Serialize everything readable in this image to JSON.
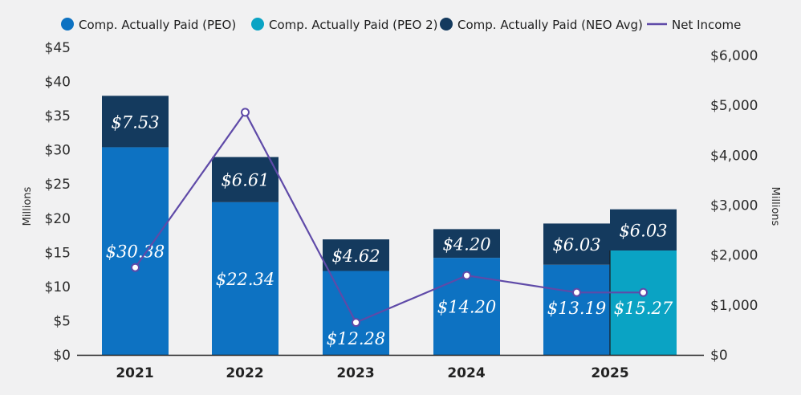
{
  "chart_data": {
    "type": "bar",
    "stacked": true,
    "categories": [
      "2021",
      "2022",
      "2023",
      "2024",
      "2025",
      "2025"
    ],
    "x_labels": [
      "2021",
      "2022",
      "2023",
      "2024",
      "2025"
    ],
    "series": [
      {
        "name": "Comp. Actually Paid (PEO)",
        "color": "#0d72c2",
        "values": [
          30.38,
          22.34,
          12.28,
          14.2,
          13.19,
          null
        ],
        "labels": [
          "$30.38",
          "$22.34",
          "$12.28",
          "$14.20",
          "$13.19",
          null
        ]
      },
      {
        "name": "Comp. Actually Paid (PEO 2)",
        "color": "#0aa3c4",
        "values": [
          null,
          null,
          null,
          null,
          null,
          15.27
        ],
        "labels": [
          null,
          null,
          null,
          null,
          null,
          "$15.27"
        ]
      },
      {
        "name": "Comp. Actually Paid (NEO Avg)",
        "color": "#143a5e",
        "values": [
          7.53,
          6.61,
          4.62,
          4.2,
          6.03,
          6.03
        ],
        "labels": [
          "$7.53",
          "$6.61",
          "$4.62",
          "$4.20",
          "$6.03",
          "$6.03"
        ]
      }
    ],
    "line_series": {
      "name": "Net Income",
      "color": "#5f4aa8",
      "axis": "right",
      "values": [
        1750,
        4860,
        650,
        1590,
        1250,
        1250
      ]
    },
    "y_left": {
      "label": "Millions",
      "range": [
        0,
        45
      ],
      "ticks": [
        0,
        5,
        10,
        15,
        20,
        25,
        30,
        35,
        40,
        45
      ],
      "tick_labels": [
        "$0",
        "$5",
        "$10",
        "$15",
        "$20",
        "$25",
        "$30",
        "$35",
        "$40",
        "$45"
      ]
    },
    "y_right": {
      "label": "Millions",
      "range": [
        0,
        6000
      ],
      "ticks": [
        0,
        1000,
        2000,
        3000,
        4000,
        5000,
        6000
      ],
      "tick_labels": [
        "$0",
        "$1,000",
        "$2,000",
        "$3,000",
        "$4,000",
        "$5,000",
        "$6,000"
      ]
    },
    "legend": {
      "position": "top",
      "entries": [
        {
          "label": "Comp. Actually Paid (PEO)",
          "color": "#0d72c2",
          "symbol": "dot"
        },
        {
          "label": "Comp. Actually Paid (PEO 2)",
          "color": "#0aa3c4",
          "symbol": "dot"
        },
        {
          "label": "Comp. Actually Paid (NEO Avg)",
          "color": "#143a5e",
          "symbol": "dot"
        },
        {
          "label": "Net Income",
          "color": "#5f4aa8",
          "symbol": "line"
        }
      ]
    },
    "grid": false
  }
}
